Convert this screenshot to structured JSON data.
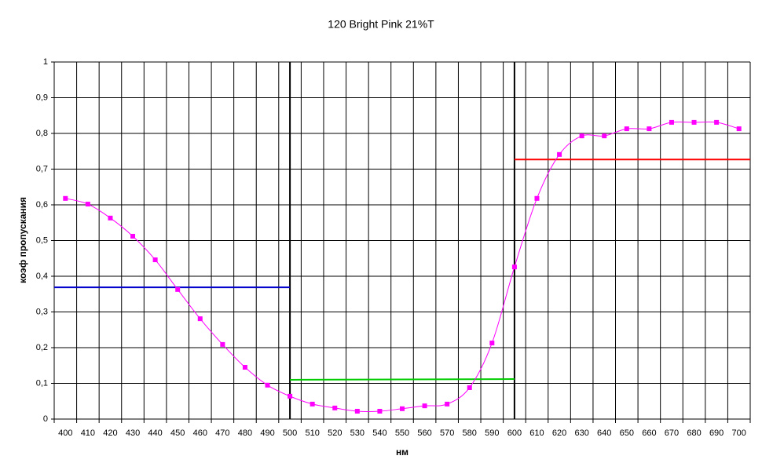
{
  "chart_data": {
    "type": "line",
    "title": "120 Bright Pink 21%T",
    "x_label": "нм",
    "y_label": "коэф пропускания",
    "xlim": [
      395,
      705
    ],
    "xticks": [
      400,
      410,
      420,
      430,
      440,
      450,
      460,
      470,
      480,
      490,
      500,
      510,
      520,
      530,
      540,
      550,
      560,
      570,
      580,
      590,
      600,
      610,
      620,
      630,
      640,
      650,
      660,
      670,
      680,
      690,
      700
    ],
    "ylim": [
      0,
      1
    ],
    "yticks": [
      0,
      {
        "value": 0.1,
        "label": "0,1"
      },
      {
        "value": 0.2,
        "label": "0,2"
      },
      {
        "value": 0.3,
        "label": "0,3"
      },
      {
        "value": 0.4,
        "label": "0,4"
      },
      {
        "value": 0.5,
        "label": "0,5"
      },
      {
        "value": 0.6,
        "label": "0,6"
      },
      {
        "value": 0.7,
        "label": "0,7"
      },
      {
        "value": 0.8,
        "label": "0,8"
      },
      {
        "value": 0.9,
        "label": "0,9"
      },
      1
    ],
    "grid": true,
    "series": [
      {
        "color": "#ff00ff",
        "x": [
          400,
          410,
          420,
          430,
          440,
          450,
          460,
          470,
          480,
          490,
          500,
          510,
          520,
          530,
          540,
          550,
          560,
          570,
          580,
          590,
          600,
          610,
          620,
          630,
          640,
          650,
          660,
          670,
          680,
          690,
          700
        ],
        "values": [
          0.618,
          0.602,
          0.563,
          0.512,
          0.446,
          0.363,
          0.281,
          0.209,
          0.145,
          0.095,
          0.064,
          0.042,
          0.031,
          0.022,
          0.022,
          0.029,
          0.037,
          0.042,
          0.088,
          0.213,
          0.426,
          0.618,
          0.741,
          0.793,
          0.793,
          0.813,
          0.813,
          0.831,
          0.831,
          0.831,
          0.813
        ]
      }
    ],
    "reference_lines": [
      {
        "color": "#0000cc",
        "x": [
          395,
          500
        ],
        "values": [
          0.369,
          0.369
        ]
      },
      {
        "color": "#00cc00",
        "x": [
          500,
          600
        ],
        "values": [
          0.11,
          0.112
        ]
      },
      {
        "color": "#ff0000",
        "x": [
          600,
          705
        ],
        "values": [
          0.727,
          0.727
        ]
      }
    ],
    "vertical_markers": [
      {
        "x": 500,
        "color": "#000000"
      },
      {
        "x": 600,
        "color": "#000000"
      }
    ]
  }
}
